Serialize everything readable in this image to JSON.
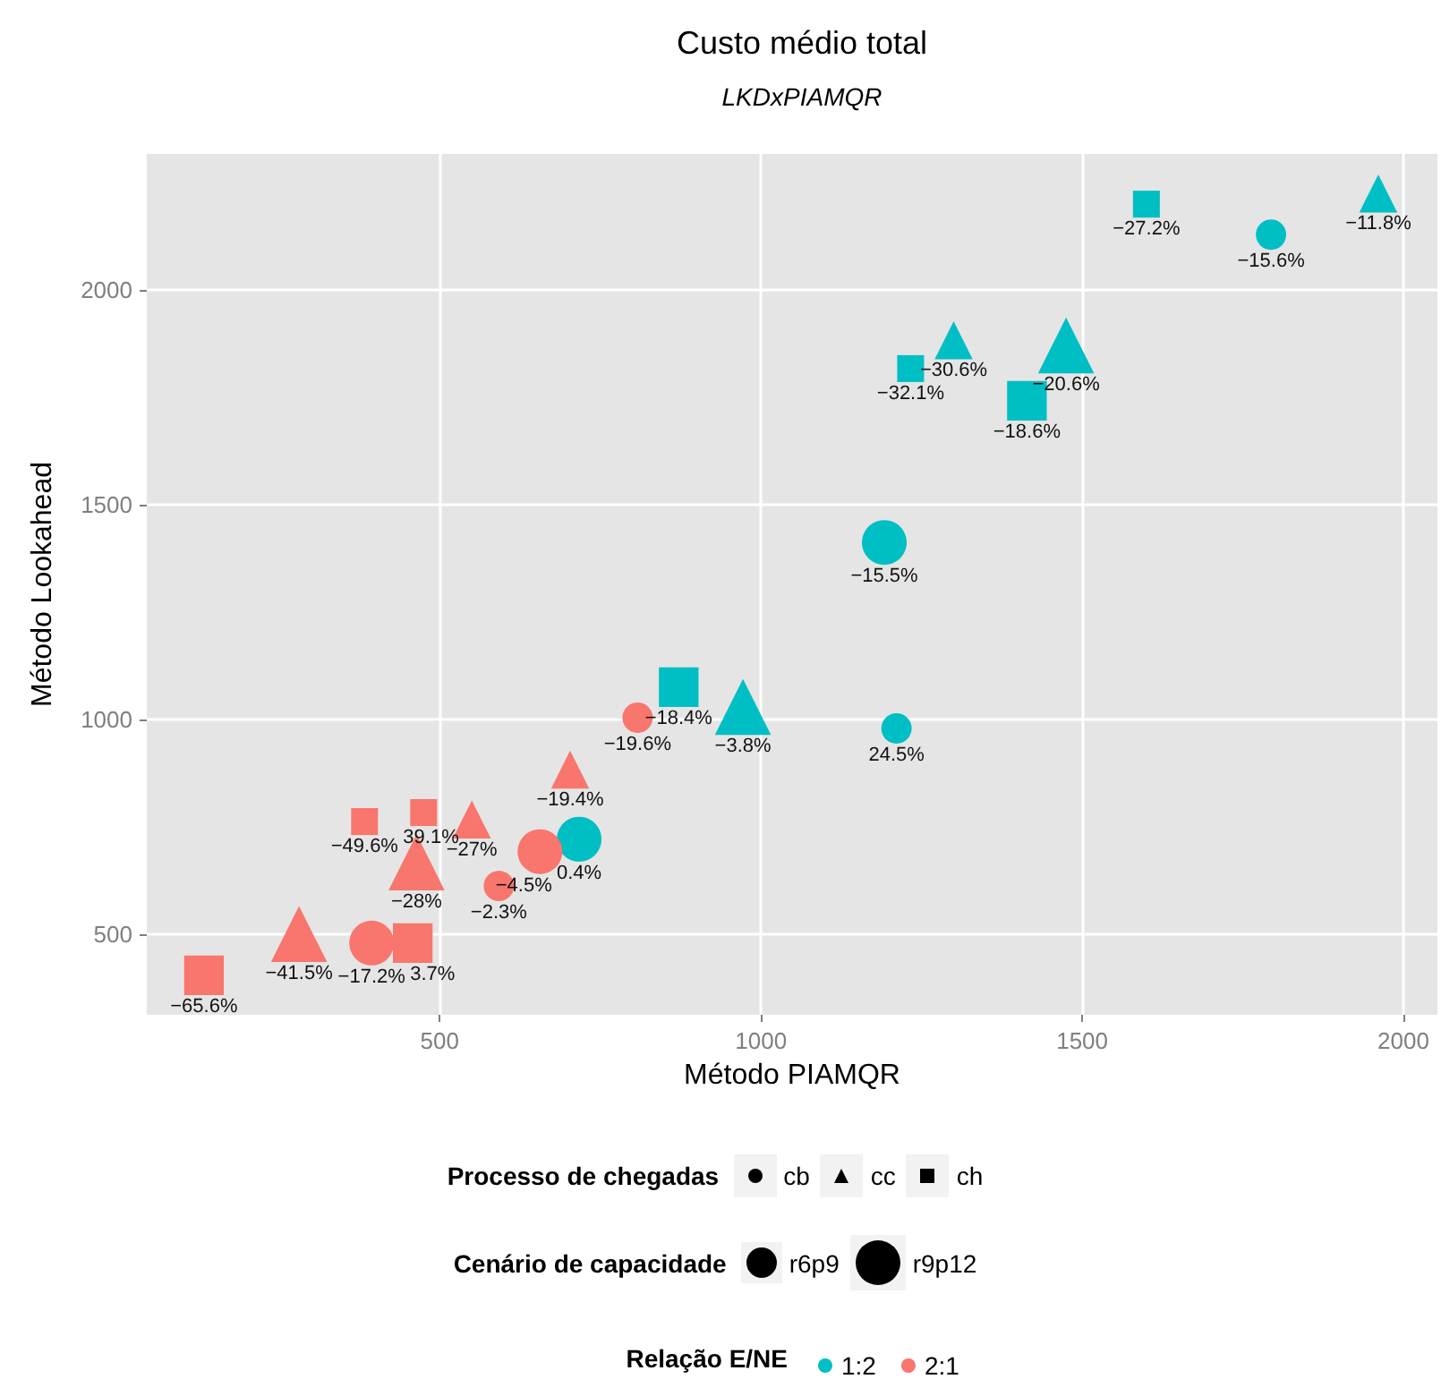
{
  "chart_data": {
    "type": "bubble",
    "title": "Custo médio total",
    "subtitle": "LKDxPIAMQR",
    "xlabel": "Método PIAMQR",
    "ylabel": "Método Lookahead",
    "xlim": [
      44,
      2053
    ],
    "ylim": [
      312,
      2317
    ],
    "xticks": [
      500,
      1000,
      1500,
      2000
    ],
    "yticks": [
      500,
      1000,
      1500,
      2000
    ],
    "grid": true,
    "legend": "bottom",
    "legend_title": "Relação E/NE",
    "series": [
      {
        "name": "1:2",
        "color": "#00bfc4",
        "marker": "circle",
        "x": [
          1794,
          1192,
          1211,
          717
        ],
        "values": [
          2129,
          1412,
          979,
          721
        ],
        "sizes": [
          0.46,
          1,
          0.46,
          1
        ]
      },
      {
        "color": "#00bfc4",
        "marker": "triangle",
        "x": [
          1961,
          1300,
          1475,
          972
        ],
        "values": [
          2225,
          1883,
          1871,
          1029
        ],
        "sizes": [
          0.46,
          0.46,
          1,
          1
        ]
      },
      {
        "color": "#00bfc4",
        "marker": "square",
        "x": [
          1600,
          1233,
          1414,
          872
        ],
        "values": [
          2200,
          1817,
          1742,
          1075
        ],
        "sizes": [
          0.46,
          0.46,
          1,
          1
        ]
      },
      {
        "name": "2:1",
        "color": "#f8766d",
        "marker": "circle",
        "x": [
          808,
          656,
          592,
          394
        ],
        "values": [
          1004,
          692,
          612,
          479
        ],
        "sizes": [
          0.46,
          1,
          0.46,
          1
        ]
      },
      {
        "color": "#f8766d",
        "marker": "triangle",
        "x": [
          703,
          550,
          464,
          281
        ],
        "values": [
          883,
          767,
          667,
          500
        ],
        "sizes": [
          0.46,
          0.46,
          1,
          1
        ]
      },
      {
        "color": "#f8766d",
        "marker": "square",
        "x": [
          383,
          475,
          458,
          133
        ],
        "values": [
          762,
          783,
          479,
          404
        ],
        "sizes": [
          0.46,
          0.46,
          1,
          1
        ]
      }
    ],
    "size_legend": [
      {
        "value": 0.46,
        "label": "r6p9"
      },
      {
        "value": 1,
        "label": "r9p12"
      }
    ],
    "annotations": [
      "Processo de chegadas",
      "cb",
      "cc",
      "ch",
      "Cenário de capacidade",
      {
        "text": "−15.6%",
        "x": 1794,
        "y": 2129
      },
      {
        "text": "−15.5%",
        "x": 1192,
        "y": 1412
      },
      {
        "text": "24.5%",
        "x": 1211,
        "y": 979
      },
      {
        "text": "0.4%",
        "x": 717,
        "y": 721
      },
      {
        "text": "−11.8%",
        "x": 1961,
        "y": 2225
      },
      {
        "text": "−30.6%",
        "x": 1300,
        "y": 1883
      },
      {
        "text": "−20.6%",
        "x": 1475,
        "y": 1871
      },
      {
        "text": "−3.8%",
        "x": 972,
        "y": 1029
      },
      {
        "text": "−27.2%",
        "x": 1600,
        "y": 2200
      },
      {
        "text": "−32.1%",
        "x": 1233,
        "y": 1817
      },
      {
        "text": "−18.6%",
        "x": 1414,
        "y": 1742
      },
      {
        "text": "−18.4%",
        "x": 872,
        "y": 1075
      },
      {
        "text": "−19.6%",
        "x": 808,
        "y": 1004
      },
      {
        "text": "−4.5%",
        "x": 656,
        "y": 692
      },
      {
        "text": "−2.3%",
        "x": 592,
        "y": 612
      },
      {
        "text": "−17.2%",
        "x": 394,
        "y": 479
      },
      {
        "text": "−19.4%",
        "x": 703,
        "y": 883
      },
      {
        "text": "−27%",
        "x": 550,
        "y": 767
      },
      {
        "text": "−28%",
        "x": 464,
        "y": 667
      },
      {
        "text": "−41.5%",
        "x": 281,
        "y": 500
      },
      {
        "text": "−49.6%",
        "x": 383,
        "y": 762
      },
      {
        "text": "39.1%",
        "x": 475,
        "y": 783
      },
      {
        "text": "3.7%",
        "x": 458,
        "y": 479
      },
      {
        "text": "−65.6%",
        "x": 133,
        "y": 404
      }
    ]
  }
}
